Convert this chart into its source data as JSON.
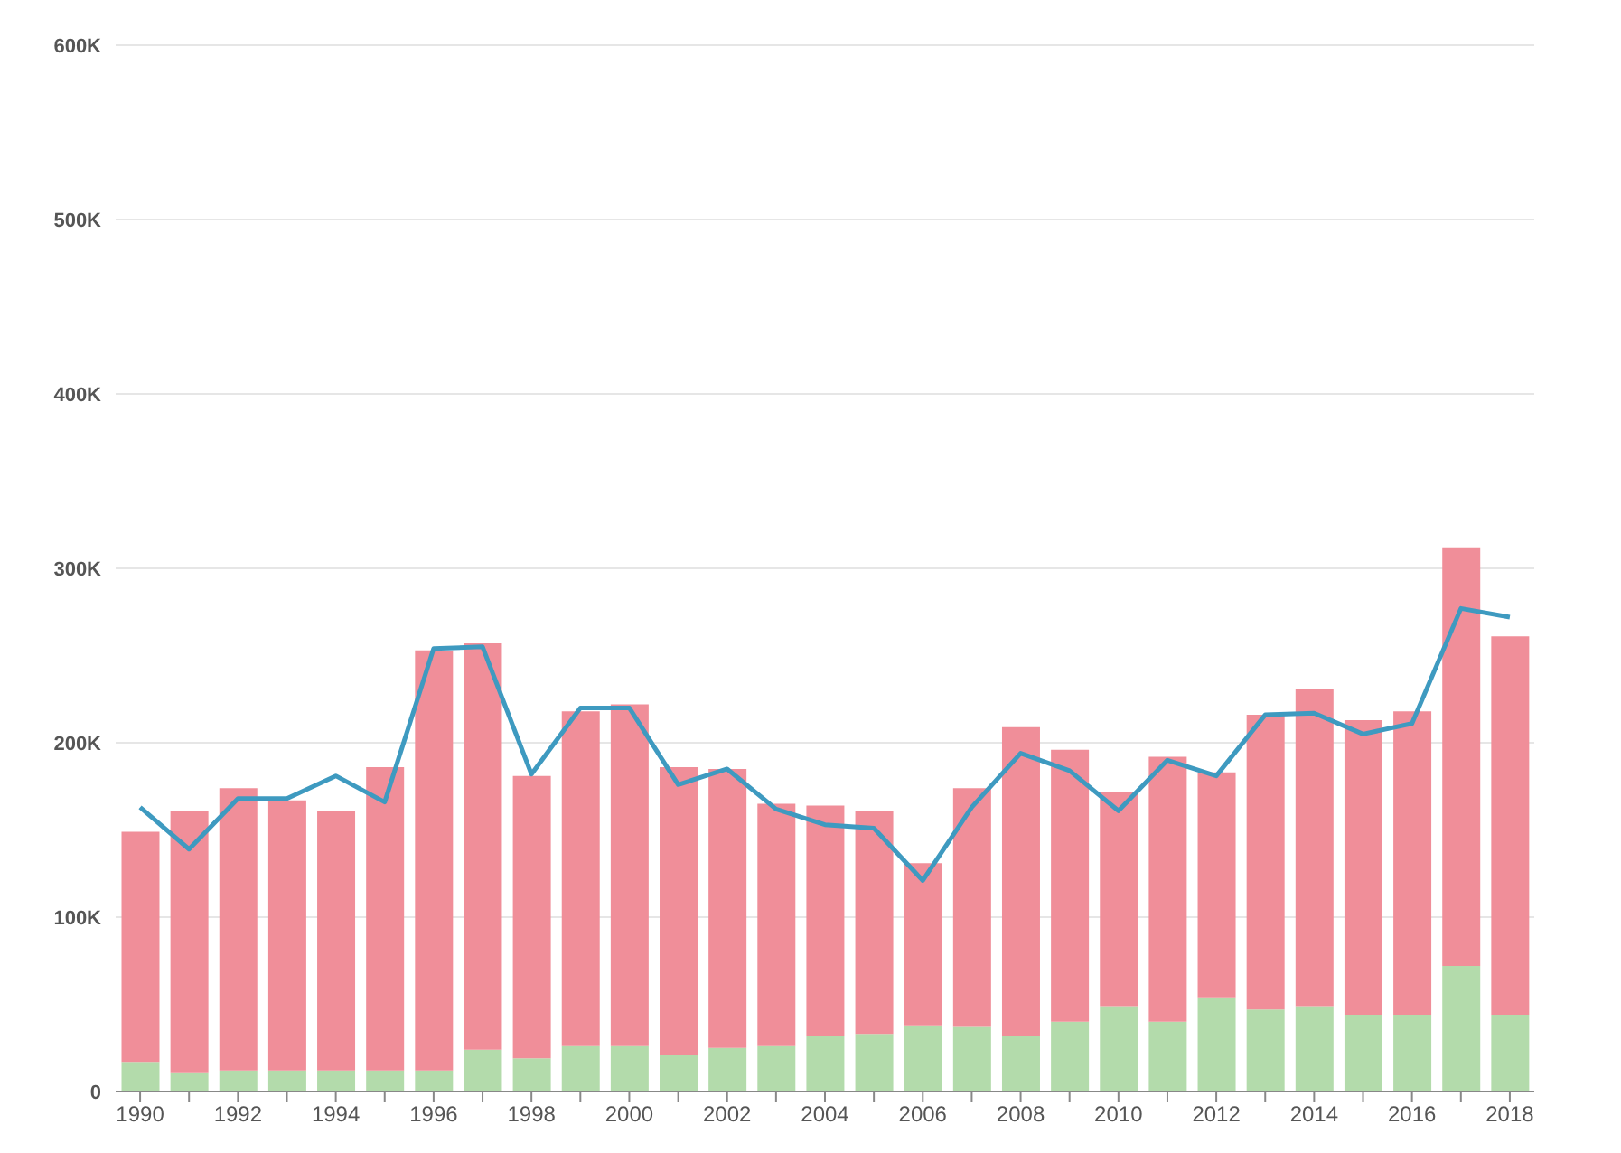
{
  "chart_data": {
    "type": "bar",
    "stacked": true,
    "categories": [
      "1990",
      null,
      "1992",
      null,
      "1994",
      null,
      "1996",
      null,
      "1998",
      null,
      "2000",
      null,
      "2002",
      null,
      "2004",
      null,
      "2006",
      null,
      "2008",
      null,
      "2010",
      null,
      "2012",
      null,
      "2014",
      null,
      "2016",
      null,
      "2018"
    ],
    "series": [
      {
        "color": "#b3dbab",
        "values": [
          17000,
          11000,
          12000,
          12000,
          12000,
          12000,
          12000,
          24000,
          19000,
          26000,
          26000,
          21000,
          25000,
          26000,
          32000,
          33000,
          38000,
          37000,
          32000,
          40000,
          49000,
          40000,
          54000,
          47000,
          49000,
          44000,
          44000,
          72000,
          44000
        ]
      },
      {
        "color": "#f08e99",
        "values": [
          132000,
          150000,
          162000,
          155000,
          149000,
          174000,
          241000,
          233000,
          162000,
          192000,
          196000,
          165000,
          160000,
          139000,
          132000,
          128000,
          93000,
          137000,
          177000,
          156000,
          123000,
          152000,
          129000,
          169000,
          182000,
          169000,
          174000,
          240000,
          217000
        ]
      },
      {
        "type": "line",
        "color": "#3e9ac0",
        "values": [
          163000,
          139000,
          168000,
          168000,
          181000,
          166000,
          254000,
          255000,
          182000,
          220000,
          220000,
          176000,
          185000,
          162000,
          153000,
          151000,
          121000,
          163000,
          194000,
          184000,
          161000,
          190000,
          181000,
          216000,
          217000,
          205000,
          211000,
          277000,
          272000
        ]
      }
    ],
    "ylim": [
      0,
      600000
    ],
    "yticks": [
      {
        "value": 0,
        "label": "0"
      },
      {
        "value": 100000,
        "label": "100K"
      },
      {
        "value": 200000,
        "label": "200K"
      },
      {
        "value": 300000,
        "label": "300K"
      },
      {
        "value": 400000,
        "label": "400K"
      },
      {
        "value": 500000,
        "label": "500K"
      },
      {
        "value": 600000,
        "label": "600K"
      }
    ],
    "grid": "y",
    "marker": "none",
    "line_style": "solid"
  }
}
